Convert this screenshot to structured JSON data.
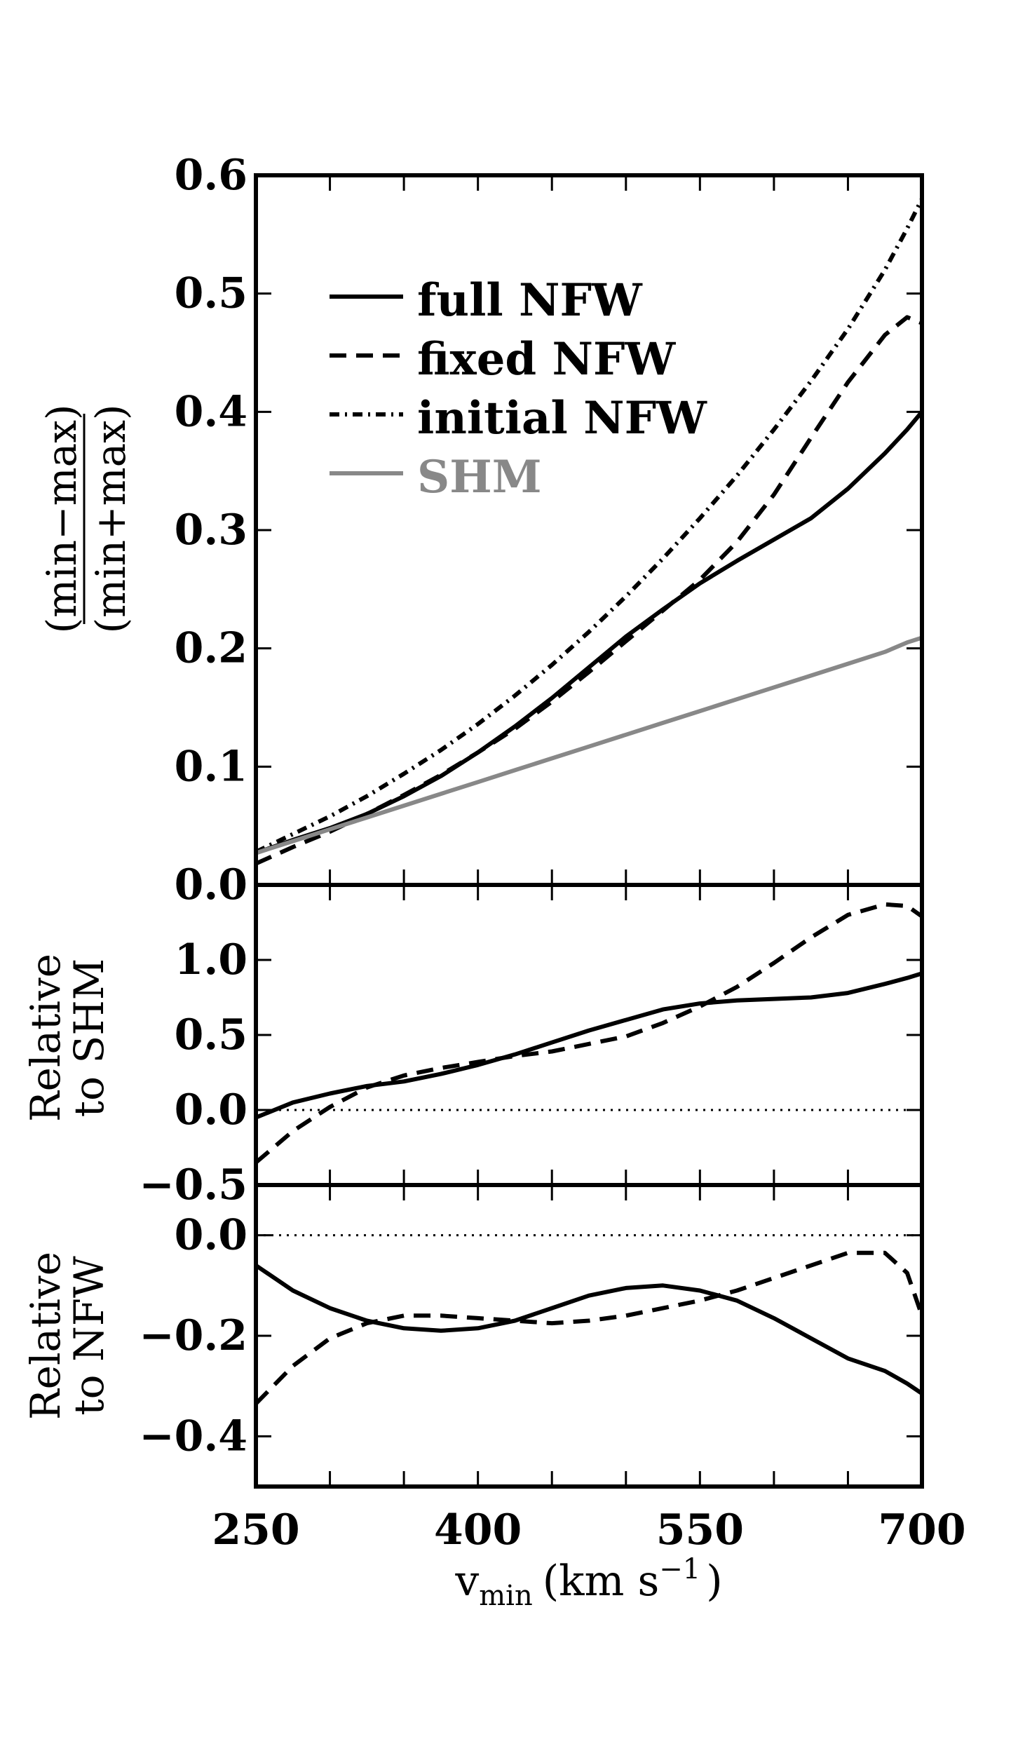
{
  "chart_data": [
    {
      "panel": "top",
      "type": "line",
      "ylabel": {
        "top": "(min−max)",
        "bottom": "(min+max)"
      },
      "xlim": [
        250,
        700
      ],
      "ylim": [
        0.0,
        0.6
      ],
      "yticks": [
        "0.0",
        "0.1",
        "0.2",
        "0.3",
        "0.4",
        "0.5",
        "0.6"
      ],
      "x": [
        250,
        275,
        300,
        325,
        350,
        375,
        400,
        425,
        450,
        475,
        500,
        525,
        550,
        575,
        600,
        625,
        650,
        675,
        690,
        700
      ],
      "series": [
        {
          "name": "full NFW",
          "style": "solid",
          "color": "#000000",
          "values": [
            0.027,
            0.038,
            0.048,
            0.06,
            0.075,
            0.092,
            0.112,
            0.134,
            0.158,
            0.184,
            0.21,
            0.233,
            0.255,
            0.274,
            0.292,
            0.31,
            0.335,
            0.365,
            0.385,
            0.4
          ]
        },
        {
          "name": "fixed NFW",
          "style": "dashed",
          "color": "#000000",
          "values": [
            0.018,
            0.032,
            0.045,
            0.06,
            0.076,
            0.093,
            0.112,
            0.132,
            0.155,
            0.18,
            0.206,
            0.232,
            0.258,
            0.29,
            0.33,
            0.378,
            0.425,
            0.465,
            0.48,
            0.475
          ]
        },
        {
          "name": "initial NFW",
          "style": "dashdot",
          "color": "#000000",
          "values": [
            0.028,
            0.043,
            0.058,
            0.075,
            0.094,
            0.114,
            0.136,
            0.16,
            0.186,
            0.214,
            0.244,
            0.276,
            0.31,
            0.346,
            0.385,
            0.426,
            0.47,
            0.52,
            0.555,
            0.58
          ]
        },
        {
          "name": "SHM",
          "style": "solid",
          "color": "#888888",
          "values": [
            0.027,
            0.037,
            0.047,
            0.057,
            0.067,
            0.077,
            0.087,
            0.097,
            0.107,
            0.117,
            0.127,
            0.137,
            0.147,
            0.157,
            0.167,
            0.177,
            0.187,
            0.197,
            0.205,
            0.209
          ]
        }
      ],
      "legend": {
        "position": "upper-left",
        "entries": [
          "full NFW",
          "fixed NFW",
          "initial NFW",
          "SHM"
        ]
      }
    },
    {
      "panel": "middle",
      "type": "line",
      "ylabel": [
        "Relative",
        "to SHM"
      ],
      "xlim": [
        250,
        700
      ],
      "ylim": [
        -0.5,
        1.5
      ],
      "yticks": [
        "−0.5",
        "0.0",
        "0.5",
        "1.0"
      ],
      "reference_line": 0.0,
      "x": [
        250,
        275,
        300,
        325,
        350,
        375,
        400,
        425,
        450,
        475,
        500,
        525,
        550,
        575,
        600,
        625,
        650,
        675,
        690,
        700
      ],
      "series": [
        {
          "name": "full NFW",
          "style": "solid",
          "color": "#000000",
          "values": [
            -0.05,
            0.05,
            0.11,
            0.16,
            0.19,
            0.24,
            0.3,
            0.37,
            0.45,
            0.53,
            0.6,
            0.67,
            0.71,
            0.73,
            0.74,
            0.75,
            0.78,
            0.84,
            0.88,
            0.91
          ]
        },
        {
          "name": "fixed NFW",
          "style": "dashed",
          "color": "#000000",
          "values": [
            -0.35,
            -0.14,
            0.02,
            0.15,
            0.23,
            0.28,
            0.32,
            0.36,
            0.39,
            0.44,
            0.49,
            0.58,
            0.69,
            0.82,
            0.98,
            1.15,
            1.3,
            1.37,
            1.36,
            1.29
          ]
        }
      ]
    },
    {
      "panel": "bottom",
      "type": "line",
      "ylabel": [
        "Relative",
        "to NFW"
      ],
      "xlim": [
        250,
        700
      ],
      "ylim": [
        -0.5,
        0.1
      ],
      "yticks": [
        "−0.4",
        "−0.2",
        "0.0"
      ],
      "xticks": [
        "250",
        "400",
        "550",
        "700"
      ],
      "xlabel": {
        "main": "v",
        "sub": "min",
        "units": "(km s",
        "sup": "−1",
        "close": ")"
      },
      "reference_line": 0.0,
      "x": [
        250,
        275,
        300,
        325,
        350,
        375,
        400,
        425,
        450,
        475,
        500,
        525,
        550,
        575,
        600,
        625,
        650,
        675,
        690,
        700
      ],
      "series": [
        {
          "name": "full NFW",
          "style": "solid",
          "color": "#000000",
          "values": [
            -0.06,
            -0.11,
            -0.145,
            -0.17,
            -0.185,
            -0.19,
            -0.185,
            -0.17,
            -0.145,
            -0.12,
            -0.105,
            -0.1,
            -0.11,
            -0.13,
            -0.165,
            -0.205,
            -0.245,
            -0.27,
            -0.295,
            -0.315
          ]
        },
        {
          "name": "fixed NFW",
          "style": "dashed",
          "color": "#000000",
          "values": [
            -0.335,
            -0.26,
            -0.205,
            -0.175,
            -0.16,
            -0.16,
            -0.165,
            -0.17,
            -0.175,
            -0.17,
            -0.16,
            -0.145,
            -0.13,
            -0.11,
            -0.085,
            -0.06,
            -0.035,
            -0.035,
            -0.075,
            -0.16
          ]
        }
      ]
    }
  ]
}
